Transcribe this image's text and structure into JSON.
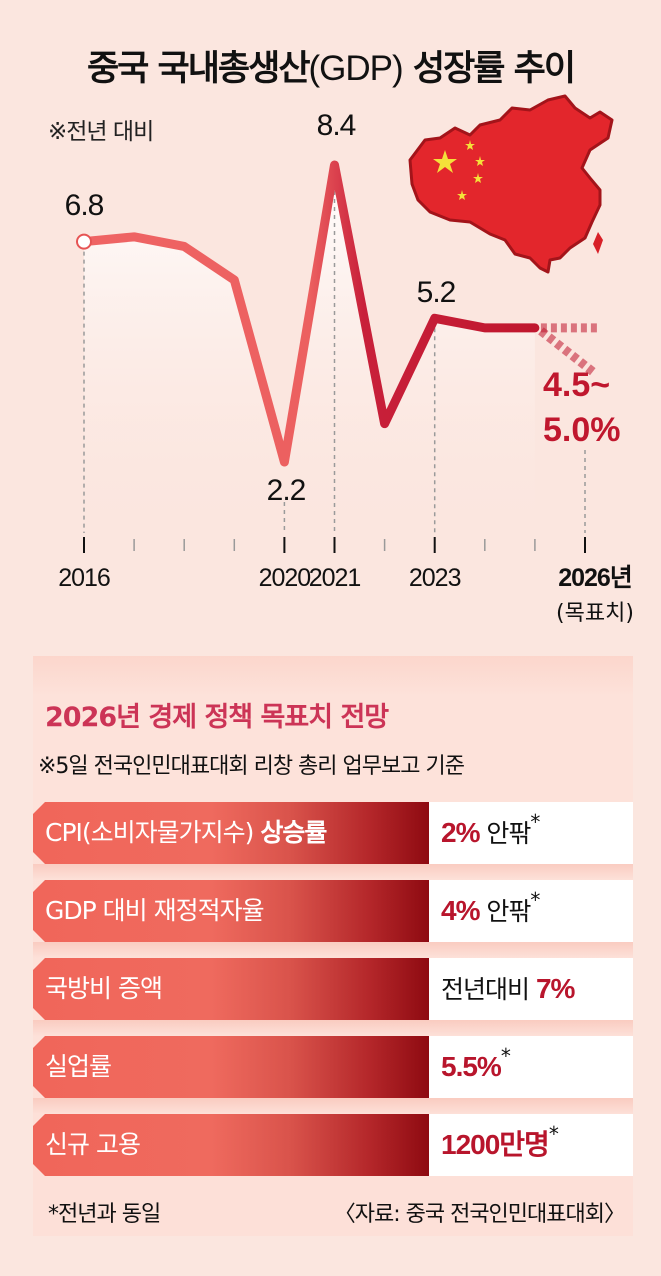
{
  "title": {
    "part1": "중국 국내총생산",
    "part2": "(GDP)",
    "part3": " 성장률 추이"
  },
  "subnote": "※전년 대비",
  "chart_data": {
    "type": "line",
    "title": "중국 국내총생산(GDP) 성장률 추이",
    "subtitle": "※전년 대비",
    "unit": "%",
    "x": [
      2016,
      2017,
      2018,
      2019,
      2020,
      2021,
      2022,
      2023,
      2024,
      2025
    ],
    "values": [
      6.8,
      6.9,
      6.7,
      6.0,
      2.2,
      8.4,
      3.0,
      5.2,
      5.0,
      5.0
    ],
    "labeled_points": [
      {
        "year": 2016,
        "label": "6.8"
      },
      {
        "year": 2020,
        "label": "2.2"
      },
      {
        "year": 2021,
        "label": "8.4"
      },
      {
        "year": 2023,
        "label": "5.2"
      }
    ],
    "projection": {
      "year": 2026,
      "low": 4.5,
      "high": 5.0,
      "label_line1": "4.5~",
      "label_line2": "5.0%"
    },
    "x_tick_labels": [
      {
        "year": 2016,
        "label": "2016"
      },
      {
        "year": 2020,
        "label": "2020"
      },
      {
        "year": 2021,
        "label": "2021"
      },
      {
        "year": 2023,
        "label": "2023"
      },
      {
        "year": 2026,
        "label": "2026년",
        "sublabel": "(목표치)"
      }
    ],
    "major_ticks": [
      2016,
      2020,
      2021,
      2023,
      2026
    ],
    "minor_ticks": [
      2017,
      2018,
      2019,
      2022,
      2024,
      2025
    ],
    "xlim": [
      2016,
      2026
    ],
    "ylim": [
      0,
      9
    ],
    "grid": false,
    "colors": {
      "early": "#ef6363",
      "late": "#c0172e",
      "target": "#c0172e"
    }
  },
  "panel": {
    "title": "2026년 경제 정책 목표치 전망",
    "subtitle": "※5일 전국인민대표대회 리창 총리 업무보고 기준",
    "rows": [
      {
        "label_normal": "CPI(소비자물가지수) ",
        "label_bold": "상승률",
        "value_prefix": "",
        "value_num": "2%",
        "value_suffix": " 안팎",
        "value_mark": "*"
      },
      {
        "label_normal": "GDP 대비 재정적자율",
        "label_bold": "",
        "value_prefix": "",
        "value_num": "4%",
        "value_suffix": " 안팎",
        "value_mark": "*"
      },
      {
        "label_normal": "국방비 증액",
        "label_bold": "",
        "value_prefix": "전년대비 ",
        "value_num": "7%",
        "value_suffix": "",
        "value_mark": ""
      },
      {
        "label_normal": "실업률",
        "label_bold": "",
        "value_prefix": "",
        "value_num": "5.5%",
        "value_suffix": "",
        "value_mark": "*"
      },
      {
        "label_normal": "신규 고용",
        "label_bold": "",
        "value_prefix": "",
        "value_num": "1200만명",
        "value_suffix": "",
        "value_mark": "*"
      }
    ],
    "footnote": "*전년과 동일",
    "source": "〈자료: 중국 전국인민대표대회〉"
  }
}
